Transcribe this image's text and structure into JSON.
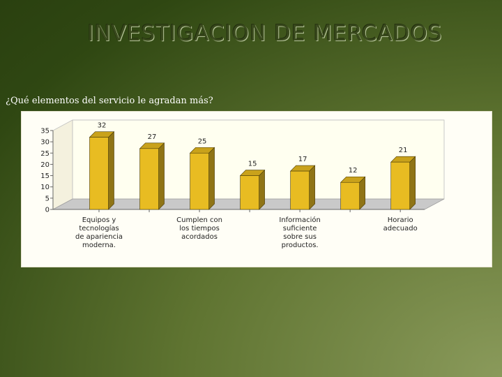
{
  "slide": {
    "title": "INVESTIGACION DE MERCADOS",
    "question": "¿Qué elementos del servicio le agradan más?"
  },
  "colors": {
    "bar_front": "#e8bc22",
    "bar_side": "#8f7416",
    "bar_top": "#c9a21b",
    "floor": "#c9c9c9",
    "wall": "#fffff0"
  },
  "chart_data": {
    "type": "bar",
    "title": "",
    "xlabel": "",
    "ylabel": "",
    "ylim": [
      0,
      35
    ],
    "yticks": [
      "0",
      "5",
      "10",
      "15",
      "20",
      "25",
      "30",
      "35"
    ],
    "grid": false,
    "legend": "none",
    "categories": [
      "Equipos y tecnologías de apariencia moderna.",
      "",
      "Cumplen con los tiempos acordados",
      "",
      "Información suficiente sobre sus productos.",
      "",
      "Horario adecuado"
    ],
    "category_lines": [
      [
        "Equipos y",
        "tecnologías",
        "de apariencia",
        "moderna."
      ],
      [],
      [
        "Cumplen con",
        "los tiempos",
        "acordados"
      ],
      [],
      [
        "Información",
        "suficiente",
        "sobre sus",
        "productos."
      ],
      [],
      [
        "Horario",
        "adecuado"
      ]
    ],
    "values": [
      32,
      27,
      25,
      15,
      17,
      12,
      21
    ],
    "value_labels": [
      "32",
      "27",
      "25",
      "15",
      "17",
      "12",
      "21"
    ]
  }
}
